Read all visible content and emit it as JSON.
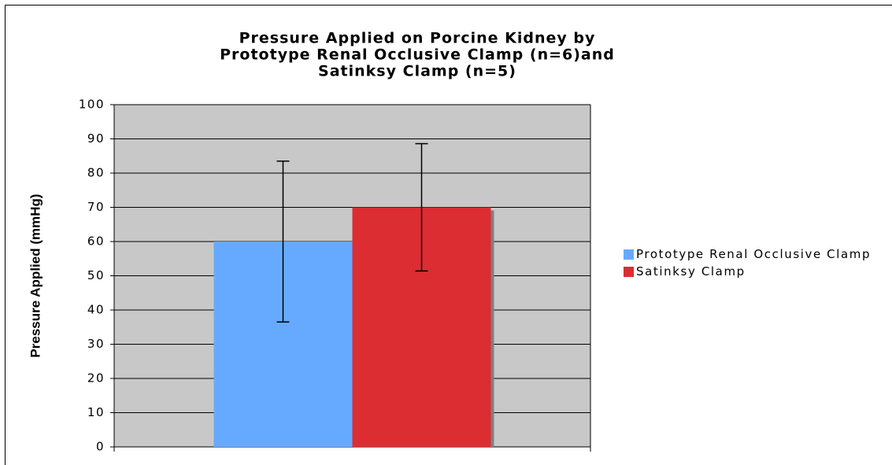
{
  "chart_data": {
    "type": "bar",
    "title": [
      "Pressure Applied on Porcine Kidney by",
      "Prototype Renal Occlusive Clamp (n=6)and",
      "Satinksy Clamp (n=5)"
    ],
    "y_label": "Pressure Applied (mmHg)",
    "categories": [
      null
    ],
    "series": [
      {
        "name": "Prototype Renal Occlusive Clamp",
        "color": "#66aaff",
        "values": [
          60
        ],
        "errors": [
          23.5
        ]
      },
      {
        "name": "Satinksy Clamp",
        "color": "#dc2d32",
        "values": [
          70
        ],
        "errors": [
          18.6
        ]
      }
    ],
    "ylim": [
      0,
      100
    ],
    "yticks": [
      0,
      10,
      20,
      30,
      40,
      50,
      60,
      70,
      80,
      90,
      100
    ],
    "grid": true,
    "legend": "right"
  }
}
